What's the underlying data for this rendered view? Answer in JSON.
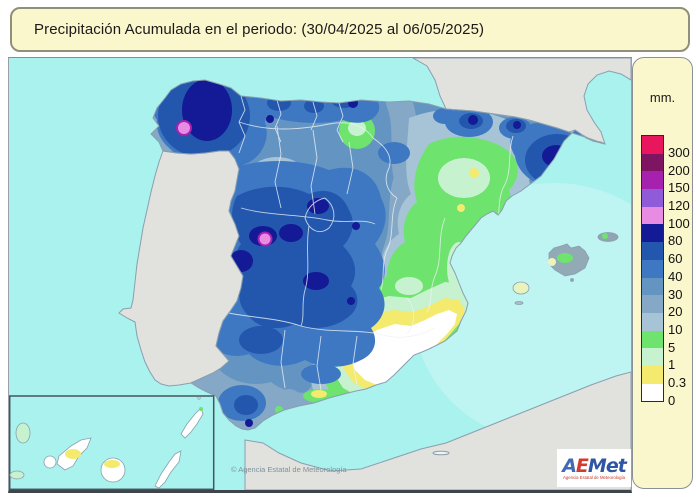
{
  "title_bar": {
    "text": "Precipitación Acumulada en el periodo:  (30/04/2025 al 06/05/2025)"
  },
  "legend": {
    "unit": "mm.",
    "items": [
      {
        "label": "300",
        "band": "b300"
      },
      {
        "label": "200",
        "band": "b200"
      },
      {
        "label": "150",
        "band": "b150"
      },
      {
        "label": "120",
        "band": "b120"
      },
      {
        "label": "100",
        "band": "b100"
      },
      {
        "label": "80",
        "band": "b80"
      },
      {
        "label": "60",
        "band": "b60"
      },
      {
        "label": "40",
        "band": "b40"
      },
      {
        "label": "30",
        "band": "b30"
      },
      {
        "label": "20",
        "band": "b20"
      },
      {
        "label": "10",
        "band": "b10"
      },
      {
        "label": "5",
        "band": "b5"
      },
      {
        "label": "1",
        "band": "b1"
      },
      {
        "label": "0.3",
        "band": "b03"
      },
      {
        "label": "0",
        "band": "b0"
      }
    ]
  },
  "bands": {
    "b300": "#E8175D",
    "b200": "#7D1562",
    "b150": "#A621AE",
    "b120": "#8F5BD8",
    "b100": "#E78BE3",
    "b80": "#141995",
    "b60": "#2357AE",
    "b40": "#3E78C2",
    "b30": "#6495C2",
    "b20": "#84A8C6",
    "b10": "#A6C4D6",
    "b5": "#6EE36E",
    "b1": "#C6F2CF",
    "b03": "#F3EA6E",
    "b0": "#FFFFFF"
  },
  "map": {
    "copyright": "© Agencia Estatal de Meteorología",
    "colors": {
      "sea": "#A9F2EE",
      "land_neighbors": "#E1E1DE",
      "coast_line": "#8A9FAE",
      "province_line": "#EDF2F7",
      "inset_border": "#45555F"
    },
    "logo": {
      "letters": [
        {
          "ch": "A",
          "color": "#3F6AB5"
        },
        {
          "ch": "E",
          "color": "#D23B2F"
        },
        {
          "ch": "M",
          "color": "#2F55A5"
        },
        {
          "ch": "e",
          "color": "#2F55A5"
        },
        {
          "ch": "t",
          "color": "#2F55A5"
        }
      ],
      "tagline": "Agencia Estatal de Meteorología"
    }
  }
}
